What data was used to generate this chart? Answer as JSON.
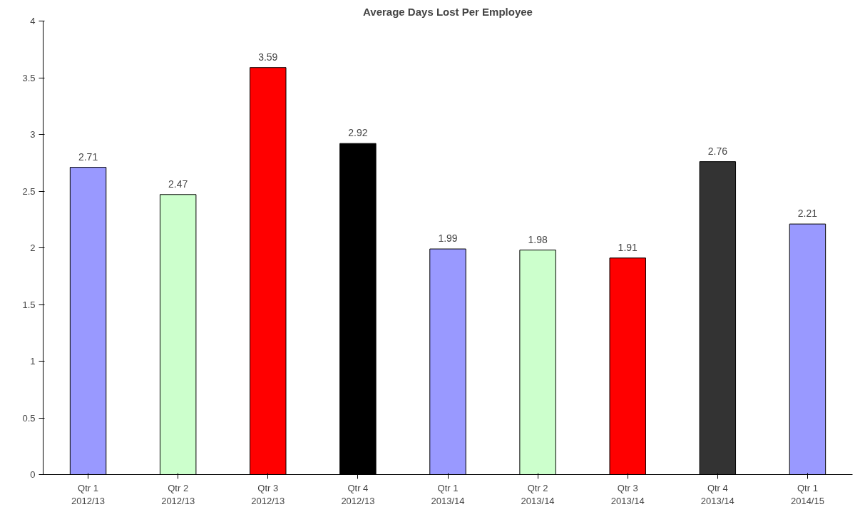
{
  "chart_data": {
    "type": "bar",
    "title": "Average Days Lost Per Employee",
    "categories": [
      "Qtr 1\n2012/13",
      "Qtr 2\n2012/13",
      "Qtr 3\n2012/13",
      "Qtr 4\n2012/13",
      "Qtr 1\n2013/14",
      "Qtr 2\n2013/14",
      "Qtr 3\n2013/14",
      "Qtr 4\n2013/14",
      "Qtr 1\n2014/15"
    ],
    "values": [
      2.71,
      2.47,
      3.59,
      2.92,
      1.99,
      1.98,
      1.91,
      2.76,
      2.21
    ],
    "colors": [
      "#9999ff",
      "#ccffcc",
      "#ff0000",
      "#000000",
      "#9999ff",
      "#ccffcc",
      "#ff0000",
      "#333333",
      "#9999ff"
    ],
    "ylim": [
      0,
      4
    ],
    "yticks": [
      0,
      0.5,
      1,
      1.5,
      2,
      2.5,
      3,
      3.5,
      4
    ],
    "data_labels": true,
    "grid": false
  }
}
